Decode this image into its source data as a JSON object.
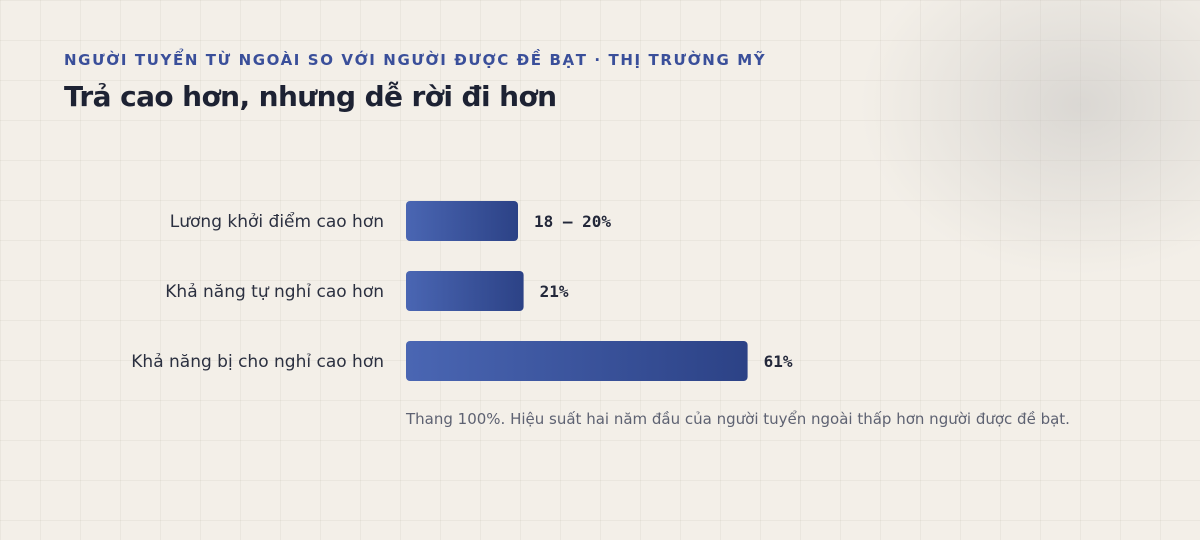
{
  "header": {
    "eyebrow": "NGƯỜI TUYỂN TỪ NGOÀI SO VỚI NGƯỜI ĐƯỢC ĐỀ BẠT · THỊ TRƯỜNG MỸ",
    "title": "Trả cao hơn, nhưng dễ rời đi hơn"
  },
  "chart_data": {
    "type": "bar",
    "orientation": "horizontal",
    "categories": [
      "Lương khởi điểm cao hơn",
      "Khả năng tự nghỉ cao hơn",
      "Khả năng bị cho nghỉ cao hơn"
    ],
    "values": [
      20,
      21,
      61
    ],
    "value_labels": [
      "18 – 20%",
      "21%",
      "61%"
    ],
    "xlim": [
      0,
      100
    ],
    "grid": false,
    "legend": "none",
    "note": "Thang 100%. Hiệu suất hai năm đầu của người tuyển ngoài thấp hơn người được đề bạt.",
    "colors": {
      "bar_start": "#4a66b3",
      "bar_end": "#2c4286"
    }
  }
}
